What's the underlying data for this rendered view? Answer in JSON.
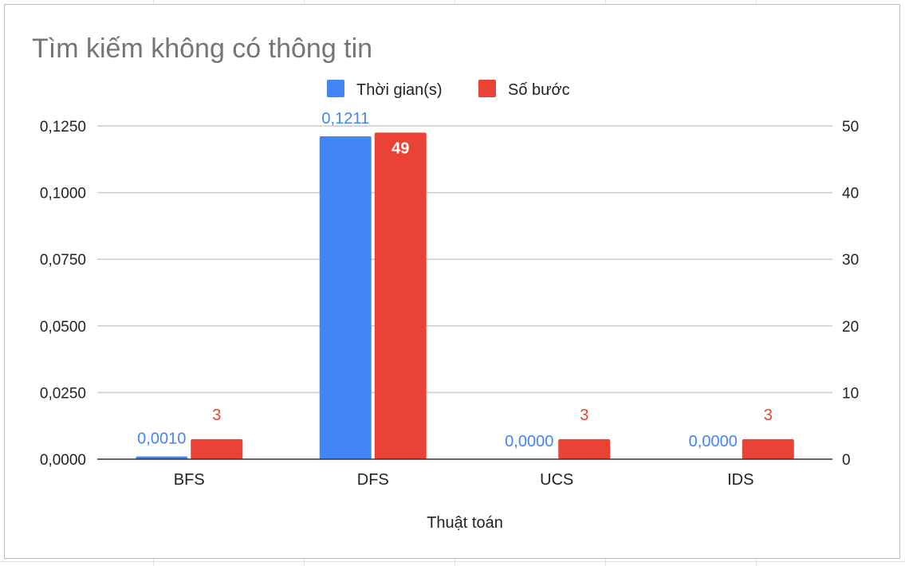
{
  "chart_data": {
    "type": "bar",
    "title": "Tìm kiếm không có thông tin",
    "xlabel": "Thuật toán",
    "ylabel_left": "",
    "ylabel_right": "",
    "categories": [
      "BFS",
      "DFS",
      "UCS",
      "IDS"
    ],
    "series": [
      {
        "name": "Thời gian(s)",
        "axis": "left",
        "color": "#4285f4",
        "label_color": "#4285f4",
        "values": [
          0.001,
          0.1211,
          0.0,
          0.0
        ],
        "data_labels": [
          "0,0010",
          "0,1211",
          "0,0000",
          "0,0000"
        ]
      },
      {
        "name": "Số bước",
        "axis": "right",
        "color": "#ea4335",
        "label_color": "#ea4335",
        "values": [
          3,
          49,
          3,
          3
        ],
        "data_labels": [
          "3",
          "49",
          "3",
          "3"
        ]
      }
    ],
    "y_left": {
      "range": [
        0,
        0.125
      ],
      "ticks": [
        0,
        0.025,
        0.05,
        0.075,
        0.1,
        0.125
      ],
      "tick_labels": [
        "0,0000",
        "0,0250",
        "0,0500",
        "0,0750",
        "0,1000",
        "0,1250"
      ]
    },
    "y_right": {
      "range": [
        0,
        50
      ],
      "ticks": [
        0,
        10,
        20,
        30,
        40,
        50
      ],
      "tick_labels": [
        "0",
        "10",
        "20",
        "30",
        "40",
        "50"
      ]
    },
    "grid": true,
    "legend_position": "top"
  },
  "colors": {
    "title": "#757575",
    "text": "#222222",
    "gridline": "#cccccc",
    "axis_line": "#333333",
    "inside_label": "#ffffff"
  }
}
